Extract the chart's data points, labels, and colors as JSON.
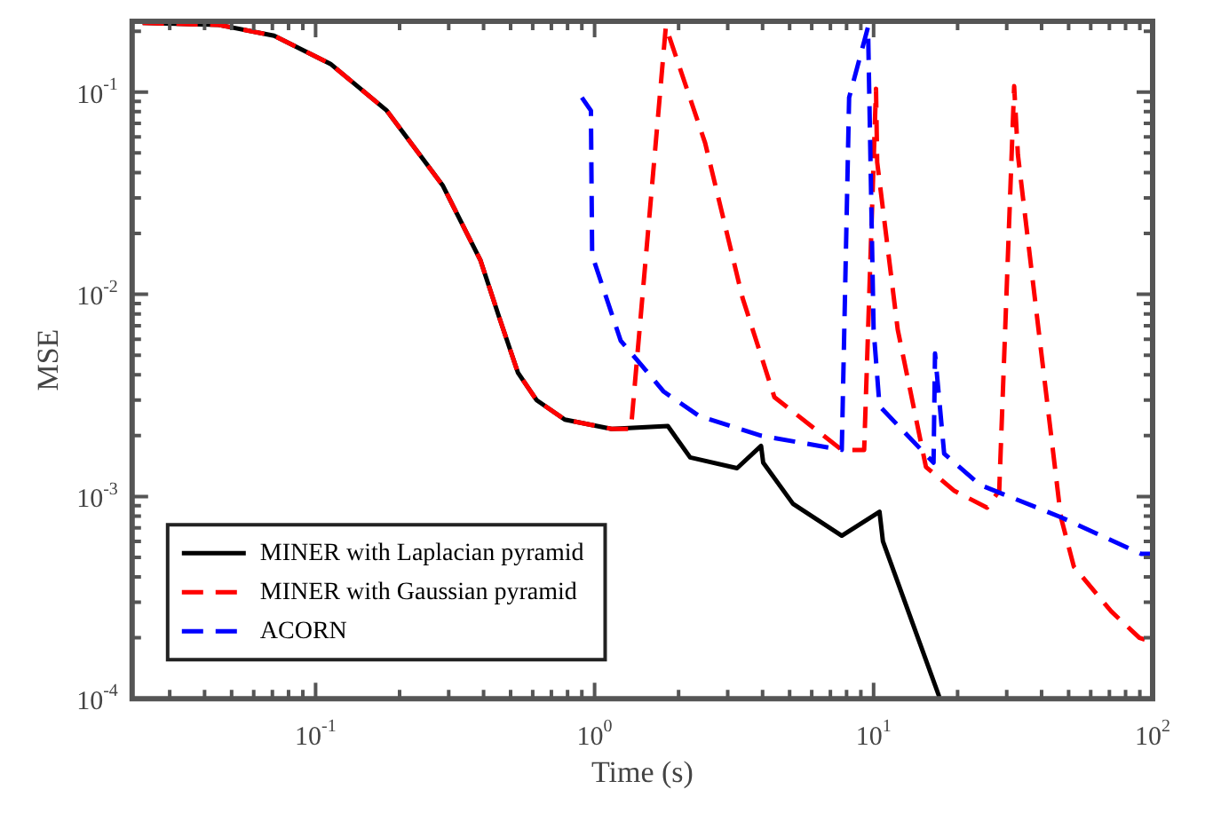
{
  "chart_data": {
    "type": "line",
    "xlabel": "Time (s)",
    "ylabel": "MSE",
    "log": "xy",
    "grid": false,
    "legend": "bottom left",
    "marker": "none",
    "xlim": [
      0.022,
      100
    ],
    "ylim": [
      0.0001,
      0.224
    ],
    "xticks": [
      {
        "value": 0.03,
        "label": null
      },
      {
        "value": 0.04,
        "label": null
      },
      {
        "value": 0.05,
        "label": null
      },
      {
        "value": 0.06,
        "label": null
      },
      {
        "value": 0.07,
        "label": null
      },
      {
        "value": 0.08,
        "label": null
      },
      {
        "value": 0.09,
        "label": null
      },
      {
        "value": 0.1,
        "label": "10$^{-1}$"
      },
      {
        "value": 0.2,
        "label": null
      },
      {
        "value": 0.3,
        "label": null
      },
      {
        "value": 0.4,
        "label": null
      },
      {
        "value": 0.5,
        "label": null
      },
      {
        "value": 0.6,
        "label": null
      },
      {
        "value": 0.7,
        "label": null
      },
      {
        "value": 0.8,
        "label": null
      },
      {
        "value": 0.9,
        "label": null
      },
      {
        "value": 1,
        "label": "10$^{0}$"
      },
      {
        "value": 2,
        "label": null
      },
      {
        "value": 3,
        "label": null
      },
      {
        "value": 4,
        "label": null
      },
      {
        "value": 5,
        "label": null
      },
      {
        "value": 6,
        "label": null
      },
      {
        "value": 7,
        "label": null
      },
      {
        "value": 8,
        "label": null
      },
      {
        "value": 9,
        "label": null
      },
      {
        "value": 10,
        "label": "10$^{1}$"
      },
      {
        "value": 20,
        "label": null
      },
      {
        "value": 30,
        "label": null
      },
      {
        "value": 40,
        "label": null
      },
      {
        "value": 50,
        "label": null
      },
      {
        "value": 60,
        "label": null
      },
      {
        "value": 70,
        "label": null
      },
      {
        "value": 80,
        "label": null
      },
      {
        "value": 90,
        "label": null
      },
      {
        "value": 100,
        "label": "10$^{2}$"
      }
    ],
    "yticks": [
      {
        "value": 0.0001,
        "label": "10$^{-4}$"
      },
      {
        "value": 0.0002,
        "label": null
      },
      {
        "value": 0.0003,
        "label": null
      },
      {
        "value": 0.0004,
        "label": null
      },
      {
        "value": 0.0005,
        "label": null
      },
      {
        "value": 0.0006,
        "label": null
      },
      {
        "value": 0.0007,
        "label": null
      },
      {
        "value": 0.0008,
        "label": null
      },
      {
        "value": 0.0009,
        "label": null
      },
      {
        "value": 0.001,
        "label": "10$^{-3}$"
      },
      {
        "value": 0.002,
        "label": null
      },
      {
        "value": 0.003,
        "label": null
      },
      {
        "value": 0.004,
        "label": null
      },
      {
        "value": 0.005,
        "label": null
      },
      {
        "value": 0.006,
        "label": null
      },
      {
        "value": 0.007,
        "label": null
      },
      {
        "value": 0.008,
        "label": null
      },
      {
        "value": 0.009,
        "label": null
      },
      {
        "value": 0.01,
        "label": "10$^{-2}$"
      },
      {
        "value": 0.02,
        "label": null
      },
      {
        "value": 0.03,
        "label": null
      },
      {
        "value": 0.04,
        "label": null
      },
      {
        "value": 0.05,
        "label": null
      },
      {
        "value": 0.06,
        "label": null
      },
      {
        "value": 0.07,
        "label": null
      },
      {
        "value": 0.08,
        "label": null
      },
      {
        "value": 0.09,
        "label": null
      },
      {
        "value": 0.1,
        "label": "10$^{-1}$"
      },
      {
        "value": 0.2,
        "label": null
      }
    ],
    "series": [
      {
        "name": "MINER with Laplacian pyramid",
        "color": "#000000",
        "line_style": "solid",
        "x": [
          0.024,
          0.045,
          0.071,
          0.113,
          0.18,
          0.286,
          0.39,
          0.455,
          0.531,
          0.619,
          0.782,
          1.15,
          1.83,
          2.2,
          3.24,
          3.95,
          4.02,
          5.14,
          7.69,
          10.5,
          10.8,
          17.2
        ],
        "values": [
          0.22,
          0.215,
          0.19,
          0.138,
          0.081,
          0.0344,
          0.0147,
          0.0077,
          0.0041,
          0.003,
          0.0024,
          0.00216,
          0.00223,
          0.00156,
          0.00138,
          0.00178,
          0.00147,
          0.00092,
          0.00064,
          0.00084,
          0.0006,
          0.000102
        ]
      },
      {
        "name": "MINER with Gaussian pyramid",
        "color": "#ff0000",
        "line_style": "dashed",
        "x": [
          0.024,
          0.045,
          0.071,
          0.113,
          0.18,
          0.286,
          0.39,
          0.455,
          0.531,
          0.619,
          0.782,
          1.15,
          1.35,
          1.8,
          2.49,
          3.39,
          4.41,
          7.69,
          9.25,
          10.2,
          10.3,
          12.2,
          15.4,
          19.4,
          25.5,
          28.2,
          31.9,
          32.9,
          39,
          46.9,
          52.2,
          71.1,
          89.7,
          100
        ],
        "values": [
          0.22,
          0.215,
          0.19,
          0.138,
          0.081,
          0.0344,
          0.0147,
          0.0077,
          0.0041,
          0.003,
          0.0024,
          0.00216,
          0.00216,
          0.211,
          0.056,
          0.0096,
          0.0031,
          0.0017,
          0.0017,
          0.104,
          0.045,
          0.0067,
          0.0014,
          0.00107,
          0.00088,
          0.00107,
          0.107,
          0.049,
          0.0067,
          0.00079,
          0.00045,
          0.00027,
          0.0002,
          0.00019
        ]
      },
      {
        "name": "ACORN",
        "color": "#0000ff",
        "line_style": "dashed",
        "x": [
          0.9,
          0.97,
          0.98,
          1.24,
          1.77,
          2.37,
          3.95,
          7.69,
          8.17,
          9.55,
          10,
          10.5,
          16.4,
          16.6,
          17.9,
          24.1,
          46.9,
          91,
          100
        ],
        "values": [
          0.094,
          0.081,
          0.0156,
          0.0059,
          0.0033,
          0.0025,
          0.002,
          0.0017,
          0.094,
          0.21,
          0.0067,
          0.0028,
          0.00147,
          0.0051,
          0.00163,
          0.00114,
          0.00079,
          0.00052,
          0.00052
        ]
      }
    ]
  }
}
